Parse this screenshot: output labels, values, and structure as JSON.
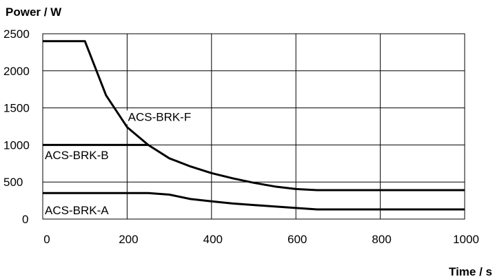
{
  "chart_data": {
    "type": "line",
    "title": "",
    "xlabel": "Time / s",
    "ylabel": "Power / W",
    "xlim": [
      0,
      1000
    ],
    "ylim": [
      0,
      2500
    ],
    "x_ticks": [
      0,
      200,
      400,
      600,
      800,
      1000
    ],
    "y_ticks": [
      0,
      500,
      1000,
      1500,
      2000,
      2500
    ],
    "grid": true,
    "series": [
      {
        "name": "ACS-BRK-F",
        "x": [
          0,
          100,
          150,
          200,
          250,
          300,
          350,
          400,
          450,
          500,
          550,
          600,
          650,
          700,
          750,
          800,
          850,
          900,
          950,
          1000
        ],
        "y": [
          2400,
          2400,
          1670,
          1240,
          1000,
          820,
          710,
          620,
          550,
          490,
          440,
          405,
          390,
          390,
          390,
          390,
          390,
          390,
          390,
          390
        ]
      },
      {
        "name": "ACS-BRK-B",
        "x": [
          0,
          100,
          200,
          250
        ],
        "y": [
          1000,
          1000,
          1000,
          1000
        ]
      },
      {
        "name": "ACS-BRK-A",
        "x": [
          0,
          100,
          200,
          250,
          300,
          350,
          400,
          450,
          500,
          550,
          600,
          650,
          700,
          800,
          900,
          1000
        ],
        "y": [
          350,
          350,
          350,
          350,
          330,
          270,
          240,
          210,
          190,
          170,
          150,
          130,
          130,
          130,
          130,
          130
        ]
      }
    ],
    "annotations": [
      {
        "text": "ACS-BRK-F",
        "x": 202,
        "y": 1325
      },
      {
        "text": "ACS-BRK-B",
        "x": 5,
        "y": 810
      },
      {
        "text": "ACS-BRK-A",
        "x": 5,
        "y": 65
      }
    ]
  }
}
